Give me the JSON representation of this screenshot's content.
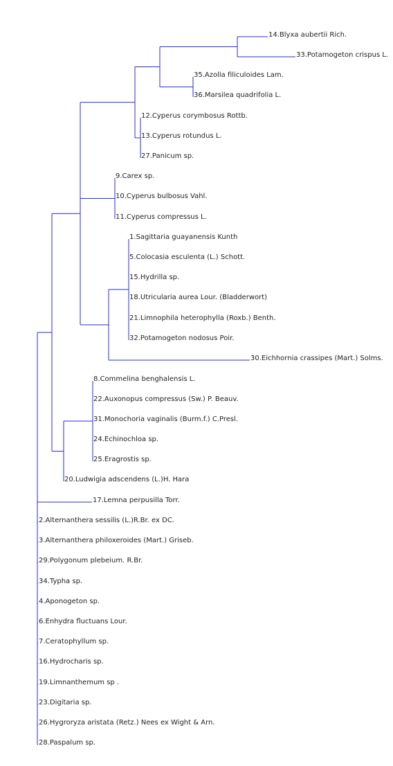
{
  "colors": {
    "branch": "#2a2ad8",
    "label": "#222222",
    "background": "#ffffff"
  },
  "leaves": [
    {
      "label": "14.Blyxa aubertii Rich."
    },
    {
      "label": "33.Potamogeton crispus L."
    },
    {
      "label": "35.Azolla  filiculoides Lam."
    },
    {
      "label": "36.Marsilea quadrifolia L."
    },
    {
      "label": "12.Cyperus corymbosus Rottb."
    },
    {
      "label": "13.Cyperus rotundus L."
    },
    {
      "label": "27.Panicum sp."
    },
    {
      "label": "9.Carex sp."
    },
    {
      "label": "10.Cyperus bulbosus Vahl."
    },
    {
      "label": "11.Cyperus compressus L."
    },
    {
      "label": "1.Sagittaria guayanensis Kunth"
    },
    {
      "label": "5.Colocasia esculenta (L.) Schott."
    },
    {
      "label": "15.Hydrilla sp."
    },
    {
      "label": "18.Utricularia aurea Lour. (Bladderwort)"
    },
    {
      "label": "21.Limnophila heterophylla (Roxb.) Benth."
    },
    {
      "label": "32.Potamogeton  nodosus Poir."
    },
    {
      "label": "30.Eichhornia crassipes (Mart.) Solms."
    },
    {
      "label": "8.Commelina benghalensis L."
    },
    {
      "label": "22.Auxonopus compressus (Sw.) P. Beauv."
    },
    {
      "label": "31.Monochoria vaginalis (Burm.f.) C.Presl."
    },
    {
      "label": "24.Echinochloa sp."
    },
    {
      "label": "25.Eragrostis sp."
    },
    {
      "label": "20.Ludwigia adscendens (L.)H. Hara"
    },
    {
      "label": "17.Lemna perpusilla Torr."
    },
    {
      "label": "2.Alternanthera  sessilis (L.)R.Br. ex DC."
    },
    {
      "label": "3.Alternanthera  philoxeroides (Mart.) Griseb."
    },
    {
      "label": "29.Polygonum  plebeium. R.Br."
    },
    {
      "label": "34.Typha sp."
    },
    {
      "label": "4.Aponogeton sp."
    },
    {
      "label": "6.Enhydra fluctuans Lour."
    },
    {
      "label": "7.Ceratophyllum sp."
    },
    {
      "label": "16.Hydrocharis sp."
    },
    {
      "label": "19.Limnanthemum sp ."
    },
    {
      "label": "23.Digitaria sp."
    },
    {
      "label": "26.Hygroryza aristata (Retz.) Nees ex Wight & Arn."
    },
    {
      "label": "28.Paspalum sp."
    }
  ]
}
